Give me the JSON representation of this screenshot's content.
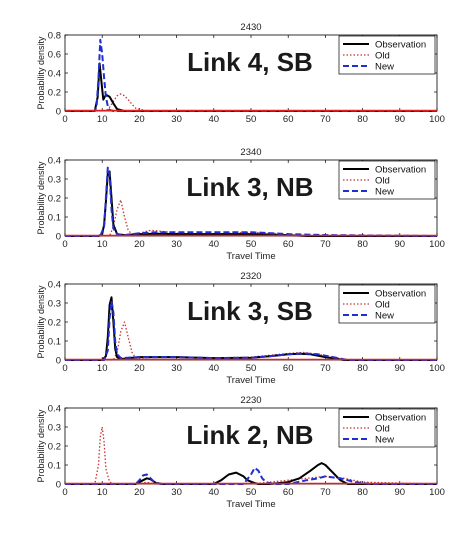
{
  "chart_data": [
    {
      "type": "line",
      "title": "2430",
      "annotation": "Link 4, SB",
      "xlabel": "",
      "ylabel": "Probability density",
      "xlim": [
        0,
        100
      ],
      "ylim": [
        0,
        0.8
      ],
      "xticks": [
        "0",
        "10",
        "20",
        "30",
        "40",
        "50",
        "60",
        "70",
        "80",
        "90",
        "100"
      ],
      "yticks": [
        "0",
        "0.2",
        "0.4",
        "0.6",
        "0.8"
      ],
      "legend_position": "top-right",
      "series": [
        {
          "name": "Observation",
          "color": "#000000",
          "style": "solid",
          "x": [
            0,
            8,
            8.8,
            9.3,
            9.8,
            10.3,
            11,
            12,
            13,
            14,
            16,
            20,
            100
          ],
          "y": [
            0,
            0,
            0.15,
            0.5,
            0.3,
            0.12,
            0.17,
            0.15,
            0.08,
            0.02,
            0,
            0,
            0
          ]
        },
        {
          "name": "Old",
          "color": "#c83232",
          "style": "dotted",
          "x": [
            0,
            11,
            12,
            13,
            14,
            15,
            16,
            17,
            18,
            19,
            21,
            22,
            100
          ],
          "y": [
            0,
            0,
            0.04,
            0.1,
            0.16,
            0.18,
            0.16,
            0.12,
            0.07,
            0.03,
            0.01,
            0,
            0
          ]
        },
        {
          "name": "New",
          "color": "#1f2fd0",
          "style": "dashed",
          "x": [
            0,
            8,
            8.5,
            9,
            9.5,
            10,
            10.5,
            11,
            11.5,
            12,
            13,
            100
          ],
          "y": [
            0,
            0,
            0.05,
            0.35,
            0.75,
            0.6,
            0.35,
            0.15,
            0.05,
            0.01,
            0,
            0
          ]
        }
      ]
    },
    {
      "type": "line",
      "title": "2340",
      "annotation": "Link 3, NB",
      "xlabel": "Travel Time",
      "ylabel": "Probability density",
      "xlim": [
        0,
        100
      ],
      "ylim": [
        0,
        0.4
      ],
      "xticks": [
        "0",
        "10",
        "20",
        "30",
        "40",
        "50",
        "60",
        "70",
        "80",
        "90",
        "100"
      ],
      "yticks": [
        "0",
        "0.1",
        "0.2",
        "0.3",
        "0.4"
      ],
      "legend_position": "top-right",
      "series": [
        {
          "name": "Observation",
          "color": "#000000",
          "style": "solid",
          "x": [
            0,
            9,
            10,
            10.5,
            11,
            11.5,
            12,
            12.5,
            13,
            14,
            16,
            20,
            25,
            30,
            40,
            50,
            60,
            65,
            100
          ],
          "y": [
            0,
            0,
            0.01,
            0.06,
            0.18,
            0.33,
            0.34,
            0.2,
            0.06,
            0.01,
            0.005,
            0.01,
            0.012,
            0.01,
            0.01,
            0.01,
            0.005,
            0,
            0
          ]
        },
        {
          "name": "Old",
          "color": "#c83232",
          "style": "dotted",
          "x": [
            0,
            12,
            13,
            14,
            15,
            16,
            17,
            18,
            20,
            23,
            26,
            30,
            40,
            45,
            50,
            55,
            60,
            65,
            100
          ],
          "y": [
            0,
            0,
            0.05,
            0.14,
            0.19,
            0.1,
            0.03,
            0.01,
            0.015,
            0.03,
            0.025,
            0.015,
            0.01,
            0.015,
            0.02,
            0.015,
            0.005,
            0,
            0
          ]
        },
        {
          "name": "New",
          "color": "#1f2fd0",
          "style": "dashed",
          "x": [
            0,
            9.5,
            10.5,
            11,
            11.5,
            12,
            12.5,
            13,
            14,
            16,
            20,
            25,
            30,
            40,
            50,
            60,
            70,
            100
          ],
          "y": [
            0,
            0,
            0.05,
            0.2,
            0.36,
            0.32,
            0.14,
            0.04,
            0.01,
            0.005,
            0.015,
            0.02,
            0.02,
            0.02,
            0.02,
            0.01,
            0.005,
            0
          ]
        }
      ]
    },
    {
      "type": "line",
      "title": "2320",
      "annotation": "Link 3, SB",
      "xlabel": "Travel Time",
      "ylabel": "Probability density",
      "xlim": [
        0,
        100
      ],
      "ylim": [
        0,
        0.4
      ],
      "xticks": [
        "0",
        "10",
        "20",
        "30",
        "40",
        "50",
        "60",
        "70",
        "80",
        "90",
        "100"
      ],
      "yticks": [
        "0",
        "0.1",
        "0.2",
        "0.3",
        "0.4"
      ],
      "legend_position": "top-right",
      "series": [
        {
          "name": "Observation",
          "color": "#000000",
          "style": "solid",
          "x": [
            0,
            10,
            11,
            11.5,
            12,
            12.5,
            13,
            13.5,
            14,
            15,
            17,
            20,
            30,
            40,
            50,
            55,
            60,
            63,
            66,
            70,
            75,
            100
          ],
          "y": [
            0,
            0,
            0.02,
            0.12,
            0.29,
            0.33,
            0.2,
            0.06,
            0.015,
            0.005,
            0.01,
            0.015,
            0.015,
            0.01,
            0.012,
            0.02,
            0.03,
            0.033,
            0.03,
            0.015,
            0,
            0
          ]
        },
        {
          "name": "Old",
          "color": "#c83232",
          "style": "dotted",
          "x": [
            0,
            13,
            14,
            15,
            16,
            17,
            18,
            19,
            20,
            25,
            30,
            40,
            50,
            55,
            60,
            64,
            68,
            72,
            76,
            100
          ],
          "y": [
            0,
            0,
            0.04,
            0.15,
            0.2,
            0.12,
            0.04,
            0.01,
            0.01,
            0.015,
            0.015,
            0.01,
            0.015,
            0.025,
            0.035,
            0.04,
            0.03,
            0.015,
            0,
            0
          ]
        },
        {
          "name": "New",
          "color": "#1f2fd0",
          "style": "dashed",
          "x": [
            0,
            10.5,
            11.5,
            12,
            12.5,
            13,
            13.5,
            14,
            15,
            20,
            30,
            40,
            50,
            55,
            60,
            64,
            68,
            72,
            76,
            100
          ],
          "y": [
            0,
            0,
            0.05,
            0.22,
            0.31,
            0.25,
            0.1,
            0.03,
            0.01,
            0.015,
            0.015,
            0.01,
            0.012,
            0.02,
            0.03,
            0.035,
            0.03,
            0.015,
            0,
            0
          ]
        }
      ]
    },
    {
      "type": "line",
      "title": "2230",
      "annotation": "Link 2, NB",
      "xlabel": "Travel Time",
      "ylabel": "Probability density",
      "xlim": [
        0,
        100
      ],
      "ylim": [
        0,
        0.4
      ],
      "xticks": [
        "0",
        "10",
        "20",
        "30",
        "40",
        "50",
        "60",
        "70",
        "80",
        "90",
        "100"
      ],
      "yticks": [
        "0",
        "0.1",
        "0.2",
        "0.3",
        "0.4"
      ],
      "legend_position": "top-right",
      "series": [
        {
          "name": "Observation",
          "color": "#000000",
          "style": "solid",
          "x": [
            0,
            19,
            21,
            22,
            23,
            24.5,
            26,
            40,
            42,
            44,
            46,
            48,
            49,
            51,
            52,
            55,
            60,
            63,
            66,
            68,
            69,
            70,
            72,
            74,
            76,
            100
          ],
          "y": [
            0,
            0,
            0.02,
            0.03,
            0.025,
            0.005,
            0,
            0,
            0.02,
            0.05,
            0.06,
            0.04,
            0.02,
            0.005,
            0,
            0,
            0.01,
            0.03,
            0.07,
            0.1,
            0.11,
            0.1,
            0.06,
            0.02,
            0,
            0
          ]
        },
        {
          "name": "Old",
          "color": "#c83232",
          "style": "dotted",
          "x": [
            0,
            8,
            9,
            9.5,
            10,
            10.5,
            11,
            12,
            13,
            20,
            22,
            24,
            50,
            55,
            60,
            65,
            70,
            75,
            80,
            100
          ],
          "y": [
            0,
            0,
            0.1,
            0.25,
            0.3,
            0.22,
            0.08,
            0.01,
            0,
            0,
            0.01,
            0,
            0,
            0.01,
            0.02,
            0.03,
            0.04,
            0.03,
            0.01,
            0
          ]
        },
        {
          "name": "New",
          "color": "#1f2fd0",
          "style": "dashed",
          "x": [
            0,
            19,
            20,
            21,
            22,
            23,
            24,
            26,
            48,
            50,
            51,
            52,
            53,
            54,
            56,
            60,
            65,
            68,
            70,
            74,
            78,
            82,
            100
          ],
          "y": [
            0,
            0,
            0.02,
            0.045,
            0.05,
            0.03,
            0.01,
            0,
            0,
            0.05,
            0.085,
            0.07,
            0.03,
            0.01,
            0,
            0,
            0.02,
            0.03,
            0.04,
            0.03,
            0.01,
            0,
            0
          ]
        }
      ]
    }
  ]
}
